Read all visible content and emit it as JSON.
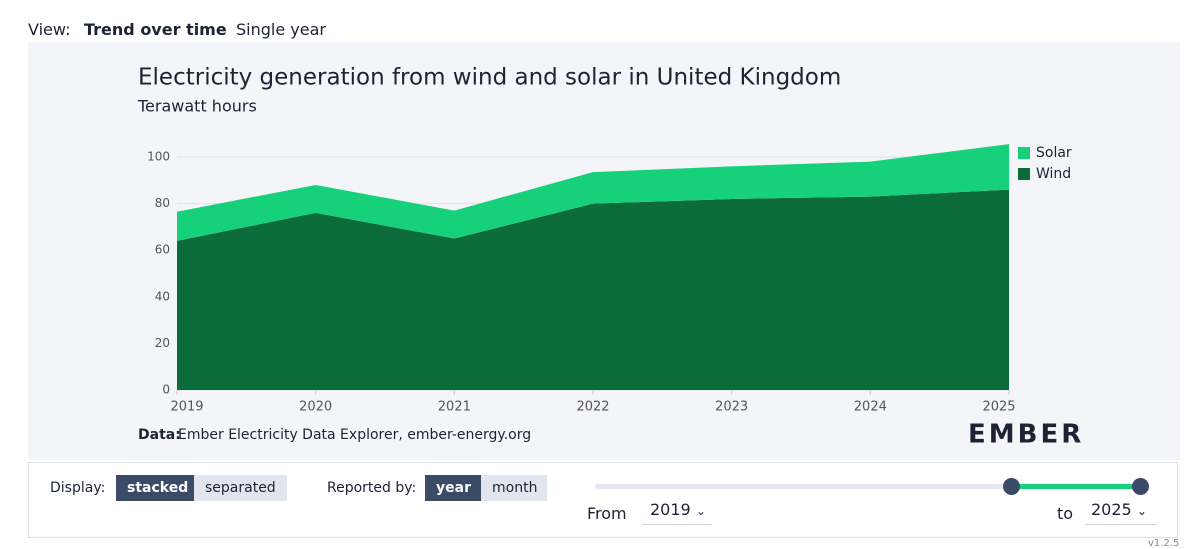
{
  "view": {
    "label": "View:",
    "tabs": [
      "Trend over time",
      "Single year"
    ]
  },
  "chart_data": {
    "type": "area",
    "title": "Electricity generation from wind and solar in United Kingdom",
    "subtitle": "Terawatt hours",
    "categories": [
      "2019",
      "2020",
      "2021",
      "2022",
      "2023",
      "2024",
      "2025"
    ],
    "series": [
      {
        "name": "Wind",
        "color": "#0b6b3a",
        "values": [
          64,
          76,
          65,
          80,
          82,
          83,
          86
        ]
      },
      {
        "name": "Solar",
        "color": "#16d07a",
        "values": [
          12.5,
          12,
          12,
          13.5,
          14,
          15,
          19.5
        ]
      }
    ],
    "stacked": true,
    "ylim": [
      0,
      110
    ],
    "yticks": [
      0,
      20,
      40,
      60,
      80,
      100
    ],
    "grid": true,
    "legend": "right",
    "source_label": "Data:",
    "source": "Ember Electricity Data Explorer, ember-energy.org",
    "logo": "EMBER"
  },
  "controls": {
    "display_label": "Display:",
    "display_options": [
      "stacked",
      "separated"
    ],
    "reported_label": "Reported by:",
    "reported_options": [
      "year",
      "month"
    ],
    "from_label": "From",
    "from_value": "2019",
    "to_label": "to",
    "to_value": "2025"
  },
  "version": "v1.2.5"
}
